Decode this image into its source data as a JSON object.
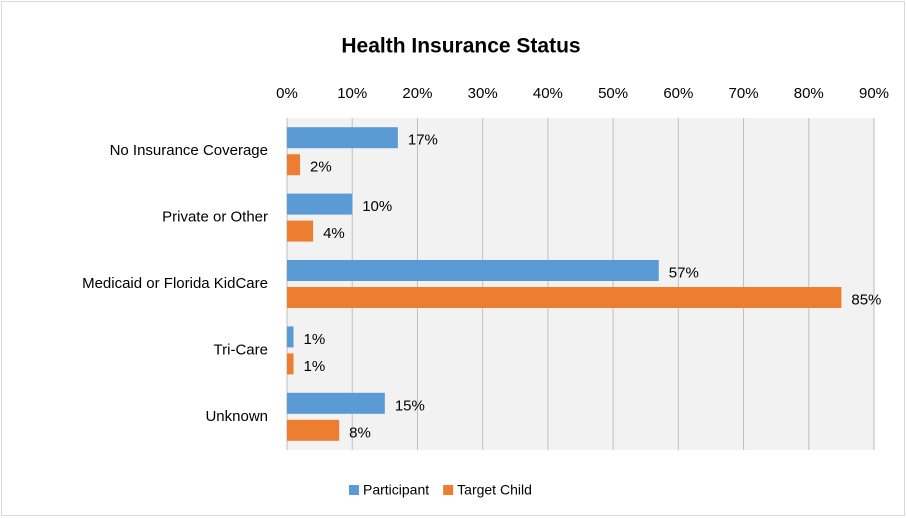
{
  "chart_data": {
    "type": "bar",
    "orientation": "horizontal",
    "title": "Health Insurance Status",
    "categories": [
      "No Insurance Coverage",
      "Private or Other",
      "Medicaid or Florida KidCare",
      "Tri-Care",
      "Unknown"
    ],
    "series": [
      {
        "name": "Participant",
        "color": "#5b9bd5",
        "values": [
          17,
          10,
          57,
          1,
          15
        ],
        "value_labels": [
          "17%",
          "10%",
          "57%",
          "1%",
          "15%"
        ]
      },
      {
        "name": "Target Child",
        "color": "#ed7d31",
        "values": [
          2,
          4,
          85,
          1,
          8
        ],
        "value_labels": [
          "2%",
          "4%",
          "85%",
          "1%",
          "8%"
        ]
      }
    ],
    "xlim": [
      0,
      90
    ],
    "xticks": [
      {
        "value": 0,
        "label": "0%"
      },
      {
        "value": 10,
        "label": "10%"
      },
      {
        "value": 20,
        "label": "20%"
      },
      {
        "value": 30,
        "label": "30%"
      },
      {
        "value": 40,
        "label": "40%"
      },
      {
        "value": 50,
        "label": "50%"
      },
      {
        "value": 60,
        "label": "60%"
      },
      {
        "value": 70,
        "label": "70%"
      },
      {
        "value": 80,
        "label": "80%"
      },
      {
        "value": 90,
        "label": "90%"
      }
    ],
    "grid": true,
    "legend": "bottom"
  }
}
